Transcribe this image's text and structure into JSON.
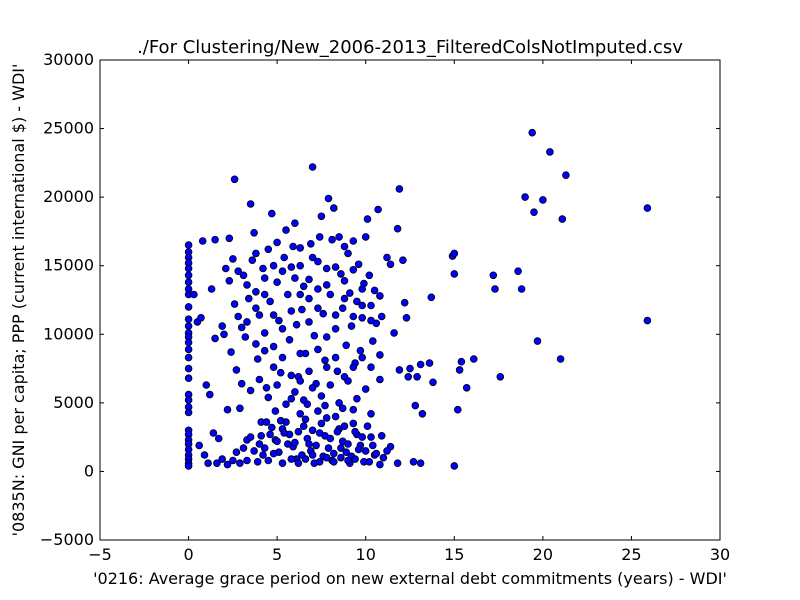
{
  "chart_data": {
    "type": "scatter",
    "title": "./For Clustering/New_2006-2013_FilteredColsNotImputed.csv",
    "xlabel": "'0216: Average grace period on new external debt commitments  (years) - WDI'",
    "ylabel": "'0835N: GNI per capita; PPP  (current international $) - WDI'",
    "xlim": [
      -5,
      30
    ],
    "ylim": [
      -5000,
      30000
    ],
    "xticks": [
      -5,
      0,
      5,
      10,
      15,
      20,
      25,
      30
    ],
    "yticks": [
      -5000,
      0,
      5000,
      10000,
      15000,
      20000,
      25000,
      30000
    ],
    "xtick_labels": [
      "−5",
      "0",
      "5",
      "10",
      "15",
      "20",
      "25",
      "30"
    ],
    "ytick_labels": [
      "−5000",
      "0",
      "5000",
      "10000",
      "15000",
      "20000",
      "25000",
      "30000"
    ],
    "grid": false,
    "marker_color": "#0000ff",
    "marker_edge_color": "#000000",
    "points": [
      [
        0.0,
        16500
      ],
      [
        0.0,
        16000
      ],
      [
        0.0,
        15600
      ],
      [
        0.0,
        15200
      ],
      [
        0.0,
        14800
      ],
      [
        0.0,
        14300
      ],
      [
        0.0,
        13800
      ],
      [
        0.0,
        13300
      ],
      [
        0.0,
        12900
      ],
      [
        0.0,
        12000
      ],
      [
        0.0,
        11100
      ],
      [
        0.0,
        10600
      ],
      [
        0.0,
        10100
      ],
      [
        0.0,
        9800
      ],
      [
        0.0,
        9400
      ],
      [
        0.0,
        8900
      ],
      [
        0.0,
        8300
      ],
      [
        0.0,
        7500
      ],
      [
        0.0,
        6800
      ],
      [
        0.0,
        5600
      ],
      [
        0.0,
        5200
      ],
      [
        0.0,
        4700
      ],
      [
        0.0,
        4300
      ],
      [
        0.0,
        3000
      ],
      [
        0.0,
        2700
      ],
      [
        0.0,
        2300
      ],
      [
        0.0,
        2000
      ],
      [
        0.0,
        1600
      ],
      [
        0.0,
        1200
      ],
      [
        0.0,
        900
      ],
      [
        0.0,
        600
      ],
      [
        0.0,
        400
      ],
      [
        0.3,
        12900
      ],
      [
        0.5,
        10900
      ],
      [
        0.6,
        1900
      ],
      [
        0.7,
        11200
      ],
      [
        0.8,
        16800
      ],
      [
        0.9,
        1200
      ],
      [
        1.0,
        6300
      ],
      [
        1.1,
        600
      ],
      [
        1.2,
        5600
      ],
      [
        1.3,
        13300
      ],
      [
        1.4,
        2800
      ],
      [
        1.5,
        16900
      ],
      [
        1.5,
        9700
      ],
      [
        1.7,
        2400
      ],
      [
        1.9,
        10600
      ],
      [
        2.0,
        10000
      ],
      [
        2.1,
        14800
      ],
      [
        2.2,
        4500
      ],
      [
        2.3,
        17000
      ],
      [
        2.3,
        13900
      ],
      [
        2.4,
        8700
      ],
      [
        2.5,
        15500
      ],
      [
        2.6,
        21300
      ],
      [
        2.6,
        12200
      ],
      [
        2.7,
        7400
      ],
      [
        2.8,
        11300
      ],
      [
        2.9,
        4600
      ],
      [
        3.0,
        10500
      ],
      [
        3.1,
        14300
      ],
      [
        3.2,
        9800
      ],
      [
        3.3,
        2300
      ],
      [
        3.4,
        12600
      ],
      [
        3.5,
        19500
      ],
      [
        3.6,
        15400
      ],
      [
        3.7,
        17400
      ],
      [
        3.8,
        13100
      ],
      [
        3.9,
        8200
      ],
      [
        4.0,
        11400
      ],
      [
        4.1,
        3600
      ],
      [
        4.2,
        14800
      ],
      [
        4.3,
        10100
      ],
      [
        4.4,
        6100
      ],
      [
        4.5,
        16200
      ],
      [
        4.6,
        12400
      ],
      [
        4.7,
        18800
      ],
      [
        4.8,
        9100
      ],
      [
        4.9,
        4400
      ],
      [
        5.0,
        16700
      ],
      [
        5.0,
        13800
      ],
      [
        5.1,
        11000
      ],
      [
        5.2,
        7200
      ],
      [
        5.3,
        3100
      ],
      [
        5.4,
        15600
      ],
      [
        5.5,
        17600
      ],
      [
        5.6,
        12900
      ],
      [
        5.7,
        9600
      ],
      [
        5.8,
        5300
      ],
      [
        5.9,
        16400
      ],
      [
        6.0,
        18100
      ],
      [
        6.0,
        14100
      ],
      [
        6.1,
        10700
      ],
      [
        6.2,
        6900
      ],
      [
        6.3,
        15000
      ],
      [
        6.4,
        11800
      ],
      [
        6.5,
        13500
      ],
      [
        6.6,
        8600
      ],
      [
        6.7,
        4900
      ],
      [
        6.8,
        12600
      ],
      [
        6.9,
        16600
      ],
      [
        7.0,
        22200
      ],
      [
        7.0,
        15600
      ],
      [
        7.1,
        9900
      ],
      [
        7.2,
        6400
      ],
      [
        7.3,
        13300
      ],
      [
        7.4,
        17100
      ],
      [
        7.5,
        18600
      ],
      [
        7.6,
        11500
      ],
      [
        7.7,
        8100
      ],
      [
        7.8,
        14800
      ],
      [
        7.9,
        19900
      ],
      [
        8.0,
        12900
      ],
      [
        8.1,
        16900
      ],
      [
        8.2,
        19200
      ],
      [
        8.3,
        10400
      ],
      [
        8.4,
        7300
      ],
      [
        8.5,
        17100
      ],
      [
        8.6,
        14400
      ],
      [
        8.7,
        11900
      ],
      [
        8.8,
        16400
      ],
      [
        8.9,
        9200
      ],
      [
        9.0,
        15900
      ],
      [
        9.1,
        13000
      ],
      [
        9.2,
        10600
      ],
      [
        9.3,
        16800
      ],
      [
        9.4,
        7900
      ],
      [
        9.5,
        12400
      ],
      [
        9.6,
        15100
      ],
      [
        9.7,
        8800
      ],
      [
        9.8,
        11200
      ],
      [
        9.9,
        13700
      ],
      [
        10.0,
        17100
      ],
      [
        10.1,
        18400
      ],
      [
        10.2,
        14300
      ],
      [
        10.3,
        12100
      ],
      [
        10.4,
        9500
      ],
      [
        10.5,
        13200
      ],
      [
        10.6,
        10800
      ],
      [
        10.7,
        19100
      ],
      [
        10.8,
        6700
      ],
      [
        10.9,
        11300
      ],
      [
        11.2,
        15600
      ],
      [
        11.4,
        15100
      ],
      [
        11.6,
        10100
      ],
      [
        11.8,
        17700
      ],
      [
        11.9,
        20600
      ],
      [
        11.9,
        7400
      ],
      [
        12.1,
        15400
      ],
      [
        12.2,
        12300
      ],
      [
        12.3,
        11200
      ],
      [
        12.4,
        6900
      ],
      [
        12.5,
        7500
      ],
      [
        12.8,
        4800
      ],
      [
        12.9,
        6900
      ],
      [
        13.1,
        7800
      ],
      [
        13.2,
        4200
      ],
      [
        13.6,
        7900
      ],
      [
        13.7,
        12700
      ],
      [
        13.8,
        6500
      ],
      [
        14.9,
        15700
      ],
      [
        15.0,
        14400
      ],
      [
        15.0,
        15900
      ],
      [
        15.2,
        4500
      ],
      [
        15.3,
        7400
      ],
      [
        15.4,
        8000
      ],
      [
        15.7,
        6100
      ],
      [
        16.1,
        8200
      ],
      [
        17.2,
        14300
      ],
      [
        17.3,
        13300
      ],
      [
        17.6,
        6900
      ],
      [
        18.6,
        14600
      ],
      [
        18.8,
        13300
      ],
      [
        19.0,
        20000
      ],
      [
        19.4,
        24700
      ],
      [
        19.5,
        18900
      ],
      [
        19.7,
        9500
      ],
      [
        20.0,
        19800
      ],
      [
        20.4,
        23300
      ],
      [
        21.0,
        8200
      ],
      [
        21.1,
        18400
      ],
      [
        21.3,
        21600
      ],
      [
        25.9,
        11000
      ],
      [
        25.9,
        19200
      ],
      [
        15.0,
        400
      ],
      [
        13.1,
        600
      ],
      [
        12.7,
        700
      ],
      [
        11.8,
        600
      ],
      [
        11.4,
        1800
      ],
      [
        11.0,
        1000
      ],
      [
        10.8,
        500
      ],
      [
        10.5,
        1200
      ],
      [
        10.3,
        2500
      ],
      [
        10.1,
        3300
      ],
      [
        9.9,
        700
      ],
      [
        9.7,
        1900
      ],
      [
        9.5,
        2700
      ],
      [
        9.3,
        3500
      ],
      [
        9.1,
        600
      ],
      [
        8.9,
        1400
      ],
      [
        8.7,
        2200
      ],
      [
        8.5,
        3100
      ],
      [
        8.3,
        4000
      ],
      [
        8.1,
        800
      ],
      [
        7.9,
        1700
      ],
      [
        7.7,
        2600
      ],
      [
        7.5,
        3500
      ],
      [
        7.3,
        4400
      ],
      [
        7.1,
        600
      ],
      [
        6.9,
        1500
      ],
      [
        6.7,
        2400
      ],
      [
        6.5,
        3300
      ],
      [
        6.3,
        4200
      ],
      [
        6.1,
        900
      ],
      [
        5.9,
        1800
      ],
      [
        5.7,
        2700
      ],
      [
        5.5,
        3600
      ],
      [
        5.3,
        600
      ],
      [
        5.1,
        1400
      ],
      [
        4.9,
        2300
      ],
      [
        4.7,
        3200
      ],
      [
        4.5,
        800
      ],
      [
        4.3,
        1700
      ],
      [
        4.1,
        2600
      ],
      [
        3.9,
        700
      ],
      [
        3.7,
        1500
      ],
      [
        3.5,
        2500
      ],
      [
        3.3,
        800
      ],
      [
        3.1,
        1700
      ],
      [
        2.9,
        600
      ],
      [
        2.7,
        1400
      ],
      [
        2.5,
        800
      ],
      [
        2.2,
        500
      ],
      [
        1.9,
        900
      ],
      [
        1.6,
        600
      ],
      [
        6.0,
        2100
      ],
      [
        6.2,
        2900
      ],
      [
        6.4,
        1200
      ],
      [
        6.6,
        3800
      ],
      [
        6.8,
        2000
      ],
      [
        7.0,
        3000
      ],
      [
        7.2,
        1900
      ],
      [
        7.4,
        2800
      ],
      [
        7.6,
        1100
      ],
      [
        7.8,
        3900
      ],
      [
        8.0,
        2400
      ],
      [
        8.2,
        1300
      ],
      [
        8.4,
        2900
      ],
      [
        8.6,
        1700
      ],
      [
        8.8,
        3300
      ],
      [
        9.0,
        2000
      ],
      [
        9.2,
        1100
      ],
      [
        9.4,
        2900
      ],
      [
        9.6,
        1600
      ],
      [
        9.8,
        2500
      ],
      [
        10.0,
        1500
      ],
      [
        10.2,
        700
      ],
      [
        10.4,
        1900
      ],
      [
        10.6,
        1300
      ],
      [
        10.9,
        2600
      ],
      [
        11.2,
        1500
      ],
      [
        5.6,
        2000
      ],
      [
        5.4,
        2800
      ],
      [
        5.2,
        3700
      ],
      [
        5.0,
        2200
      ],
      [
        4.8,
        1300
      ],
      [
        4.6,
        2700
      ],
      [
        4.4,
        3600
      ],
      [
        4.2,
        1200
      ],
      [
        4.0,
        2000
      ],
      [
        5.8,
        900
      ],
      [
        6.2,
        600
      ],
      [
        6.6,
        900
      ],
      [
        7.0,
        1200
      ],
      [
        7.4,
        700
      ],
      [
        7.8,
        1000
      ],
      [
        8.2,
        700
      ],
      [
        8.6,
        1000
      ],
      [
        9.0,
        800
      ],
      [
        9.4,
        900
      ],
      [
        5.5,
        4900
      ],
      [
        6.0,
        5800
      ],
      [
        6.5,
        5200
      ],
      [
        7.0,
        6100
      ],
      [
        7.5,
        5500
      ],
      [
        8.0,
        6300
      ],
      [
        8.5,
        5000
      ],
      [
        9.0,
        6600
      ],
      [
        9.5,
        5300
      ],
      [
        10.0,
        6000
      ],
      [
        4.5,
        5400
      ],
      [
        4.0,
        6700
      ],
      [
        3.5,
        5900
      ],
      [
        3.0,
        6400
      ],
      [
        5.0,
        6300
      ],
      [
        6.3,
        6600
      ],
      [
        7.7,
        4800
      ],
      [
        8.7,
        4600
      ],
      [
        9.3,
        4500
      ],
      [
        10.3,
        4200
      ],
      [
        3.8,
        9300
      ],
      [
        4.3,
        8800
      ],
      [
        4.8,
        7600
      ],
      [
        5.3,
        8300
      ],
      [
        5.8,
        7000
      ],
      [
        6.3,
        8600
      ],
      [
        6.8,
        7300
      ],
      [
        7.3,
        8900
      ],
      [
        7.8,
        7600
      ],
      [
        8.3,
        8300
      ],
      [
        8.8,
        6900
      ],
      [
        9.3,
        7600
      ],
      [
        9.8,
        8300
      ],
      [
        10.3,
        7600
      ],
      [
        10.8,
        8500
      ],
      [
        3.3,
        10900
      ],
      [
        3.8,
        11900
      ],
      [
        4.3,
        12900
      ],
      [
        4.8,
        11400
      ],
      [
        5.3,
        10400
      ],
      [
        5.8,
        11700
      ],
      [
        6.3,
        12900
      ],
      [
        6.8,
        10900
      ],
      [
        7.3,
        11900
      ],
      [
        7.8,
        9800
      ],
      [
        8.3,
        11400
      ],
      [
        8.8,
        12600
      ],
      [
        9.3,
        11300
      ],
      [
        9.8,
        12100
      ],
      [
        10.3,
        11000
      ],
      [
        10.8,
        12800
      ],
      [
        2.8,
        14600
      ],
      [
        3.3,
        13600
      ],
      [
        3.8,
        15900
      ],
      [
        4.3,
        14100
      ],
      [
        4.8,
        15000
      ],
      [
        5.3,
        14600
      ],
      [
        5.8,
        14900
      ],
      [
        6.3,
        16300
      ],
      [
        6.8,
        14000
      ],
      [
        7.3,
        15300
      ],
      [
        7.8,
        13600
      ],
      [
        8.3,
        14900
      ],
      [
        8.8,
        13900
      ],
      [
        9.3,
        14700
      ],
      [
        9.8,
        13300
      ]
    ]
  }
}
